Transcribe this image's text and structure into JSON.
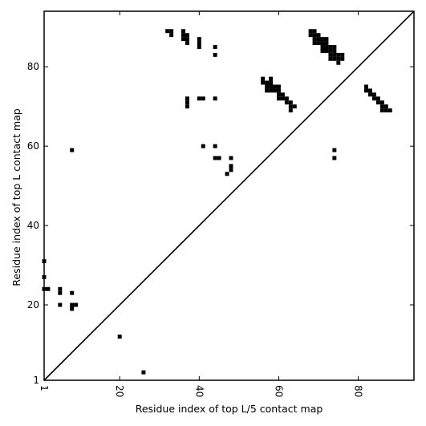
{
  "chart_data": {
    "type": "heatmap",
    "subtype": "binary contact map (upper triangle vs lower triangle)",
    "xlabel": "Residue index of top L/5 contact map",
    "ylabel": "Residue index of top L contact map",
    "xlim": [
      1,
      94
    ],
    "ylim": [
      1,
      94
    ],
    "x_ticks": [
      1,
      20,
      40,
      60,
      80
    ],
    "x_tick_labels": [
      "1",
      "20",
      "40",
      "60",
      "80"
    ],
    "y_ticks": [
      1,
      20,
      40,
      60,
      80
    ],
    "y_tick_labels": [
      "1",
      "20",
      "40",
      "60",
      "80"
    ],
    "x_tick_label_rotation": -90,
    "diagonal_line": true,
    "grid": false,
    "cell_color": "#000000",
    "background_color": "#ffffff",
    "contacts": [
      [
        1,
        31
      ],
      [
        1,
        27
      ],
      [
        1,
        24
      ],
      [
        2,
        24
      ],
      [
        5,
        24
      ],
      [
        5,
        23
      ],
      [
        5,
        20
      ],
      [
        8,
        23
      ],
      [
        8,
        20
      ],
      [
        8,
        19
      ],
      [
        9,
        20
      ],
      [
        8,
        59
      ],
      [
        20,
        12
      ],
      [
        26,
        3
      ],
      [
        32,
        89
      ],
      [
        33,
        89
      ],
      [
        33,
        88
      ],
      [
        36,
        89
      ],
      [
        36,
        88
      ],
      [
        36,
        87
      ],
      [
        37,
        88
      ],
      [
        37,
        87
      ],
      [
        37,
        86
      ],
      [
        37,
        72
      ],
      [
        37,
        71
      ],
      [
        37,
        70
      ],
      [
        40,
        87
      ],
      [
        40,
        86
      ],
      [
        40,
        85
      ],
      [
        40,
        72
      ],
      [
        41,
        72
      ],
      [
        41,
        60
      ],
      [
        44,
        85
      ],
      [
        44,
        83
      ],
      [
        44,
        72
      ],
      [
        44,
        60
      ],
      [
        44,
        57
      ],
      [
        45,
        57
      ],
      [
        47,
        53
      ],
      [
        48,
        57
      ],
      [
        48,
        55
      ],
      [
        48,
        54
      ],
      [
        56,
        77
      ],
      [
        56,
        76
      ],
      [
        57,
        76
      ],
      [
        57,
        75
      ],
      [
        57,
        74
      ],
      [
        58,
        77
      ],
      [
        58,
        76
      ],
      [
        58,
        75
      ],
      [
        58,
        74
      ],
      [
        59,
        75
      ],
      [
        59,
        74
      ],
      [
        60,
        75
      ],
      [
        60,
        74
      ],
      [
        60,
        73
      ],
      [
        60,
        72
      ],
      [
        61,
        73
      ],
      [
        61,
        72
      ],
      [
        62,
        72
      ],
      [
        62,
        71
      ],
      [
        63,
        71
      ],
      [
        63,
        70
      ],
      [
        63,
        69
      ],
      [
        64,
        70
      ],
      [
        68,
        89
      ],
      [
        68,
        88
      ],
      [
        69,
        89
      ],
      [
        69,
        88
      ],
      [
        69,
        87
      ],
      [
        69,
        86
      ],
      [
        70,
        88
      ],
      [
        70,
        87
      ],
      [
        70,
        86
      ],
      [
        71,
        87
      ],
      [
        71,
        86
      ],
      [
        71,
        85
      ],
      [
        71,
        84
      ],
      [
        72,
        87
      ],
      [
        72,
        86
      ],
      [
        72,
        85
      ],
      [
        72,
        84
      ],
      [
        73,
        85
      ],
      [
        73,
        84
      ],
      [
        73,
        83
      ],
      [
        73,
        82
      ],
      [
        74,
        85
      ],
      [
        74,
        84
      ],
      [
        74,
        83
      ],
      [
        74,
        82
      ],
      [
        75,
        83
      ],
      [
        75,
        82
      ],
      [
        75,
        81
      ],
      [
        76,
        83
      ],
      [
        76,
        82
      ],
      [
        74,
        59
      ],
      [
        74,
        57
      ],
      [
        82,
        75
      ],
      [
        82,
        74
      ],
      [
        83,
        74
      ],
      [
        83,
        73
      ],
      [
        84,
        73
      ],
      [
        84,
        72
      ],
      [
        85,
        72
      ],
      [
        85,
        71
      ],
      [
        86,
        71
      ],
      [
        86,
        70
      ],
      [
        86,
        69
      ],
      [
        87,
        70
      ],
      [
        87,
        69
      ],
      [
        88,
        69
      ]
    ]
  }
}
